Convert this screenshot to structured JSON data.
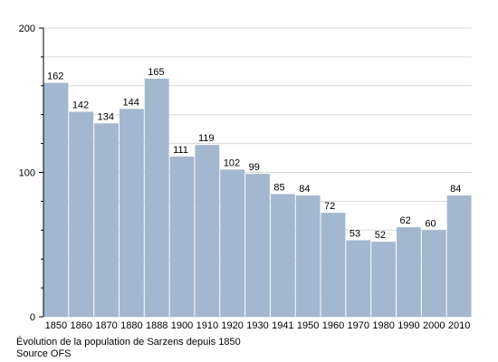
{
  "chart_data": {
    "type": "bar",
    "categories": [
      "1850",
      "1860",
      "1870",
      "1880",
      "1888",
      "1900",
      "1910",
      "1920",
      "1930",
      "1941",
      "1950",
      "1960",
      "1970",
      "1980",
      "1990",
      "2000",
      "2010"
    ],
    "values": [
      162,
      142,
      134,
      144,
      165,
      111,
      119,
      102,
      99,
      85,
      84,
      72,
      53,
      52,
      62,
      60,
      84
    ],
    "ylim": [
      0,
      200
    ],
    "yticks": [
      "0",
      "100",
      "200"
    ],
    "grid": true,
    "colors": {
      "bar": "#a3b7cf",
      "grid": "#d9d9d9",
      "axis": "#000000"
    }
  },
  "caption": {
    "line1": "Évolution de la population de Sarzens depuis 1850",
    "line2": "Source OFS"
  }
}
